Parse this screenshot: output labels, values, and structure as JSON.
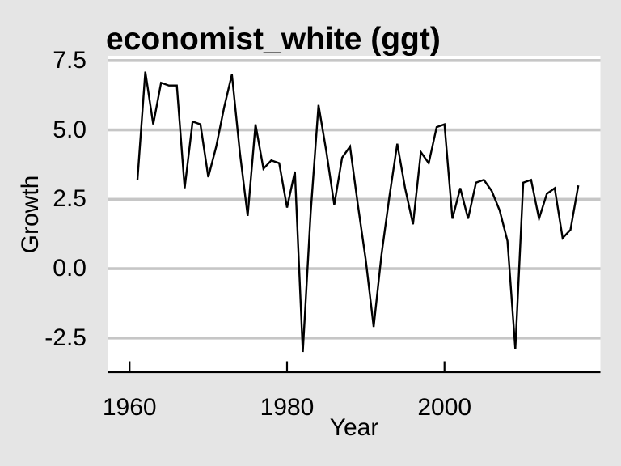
{
  "style": {
    "background": "#e5e5e5",
    "panel_background": "#ffffff",
    "gridline_color": "#c6c6c6",
    "axis_color": "#000000",
    "text_color": "#000000",
    "line_color": "#000000"
  },
  "chart_data": {
    "type": "line",
    "title": "economist_white (ggt)",
    "xlabel": "Year",
    "ylabel": "Growth",
    "legend": "none",
    "grid": "horizontal-major-only",
    "x_range": [
      1957.2,
      2019.8
    ],
    "y_range": [
      -3.73,
      7.67
    ],
    "x_ticks": {
      "values": [
        1960,
        1980,
        2000
      ],
      "labels": [
        "1960",
        "1980",
        "2000"
      ]
    },
    "y_ticks": {
      "values": [
        7.5,
        5.0,
        2.5,
        0.0,
        -2.5
      ],
      "labels": [
        "7.5",
        "5.0",
        "2.5",
        "0.0",
        "-2.5"
      ]
    },
    "x": [
      1961,
      1962,
      1963,
      1964,
      1965,
      1966,
      1967,
      1968,
      1969,
      1970,
      1971,
      1972,
      1973,
      1974,
      1975,
      1976,
      1977,
      1978,
      1979,
      1980,
      1981,
      1982,
      1983,
      1984,
      1985,
      1986,
      1987,
      1988,
      1989,
      1990,
      1991,
      1992,
      1993,
      1994,
      1995,
      1996,
      1997,
      1998,
      1999,
      2000,
      2001,
      2002,
      2003,
      2004,
      2005,
      2006,
      2007,
      2008,
      2009,
      2010,
      2011,
      2012,
      2013,
      2014,
      2015,
      2016,
      2017
    ],
    "series": [
      {
        "name": "Growth",
        "values": [
          3.2,
          7.1,
          5.2,
          6.7,
          6.6,
          6.6,
          2.9,
          5.3,
          5.2,
          3.3,
          4.4,
          5.8,
          7.0,
          4.2,
          1.9,
          5.2,
          3.6,
          3.9,
          3.8,
          2.2,
          3.5,
          -3.0,
          2.0,
          5.9,
          4.2,
          2.3,
          4.0,
          4.4,
          2.3,
          0.3,
          -2.1,
          0.5,
          2.6,
          4.5,
          2.9,
          1.6,
          4.2,
          3.8,
          5.1,
          5.2,
          1.8,
          2.9,
          1.8,
          3.1,
          3.2,
          2.8,
          2.1,
          1.0,
          -2.9,
          3.1,
          3.2,
          1.8,
          2.7,
          2.9,
          1.1,
          1.4,
          3.0
        ]
      }
    ]
  }
}
